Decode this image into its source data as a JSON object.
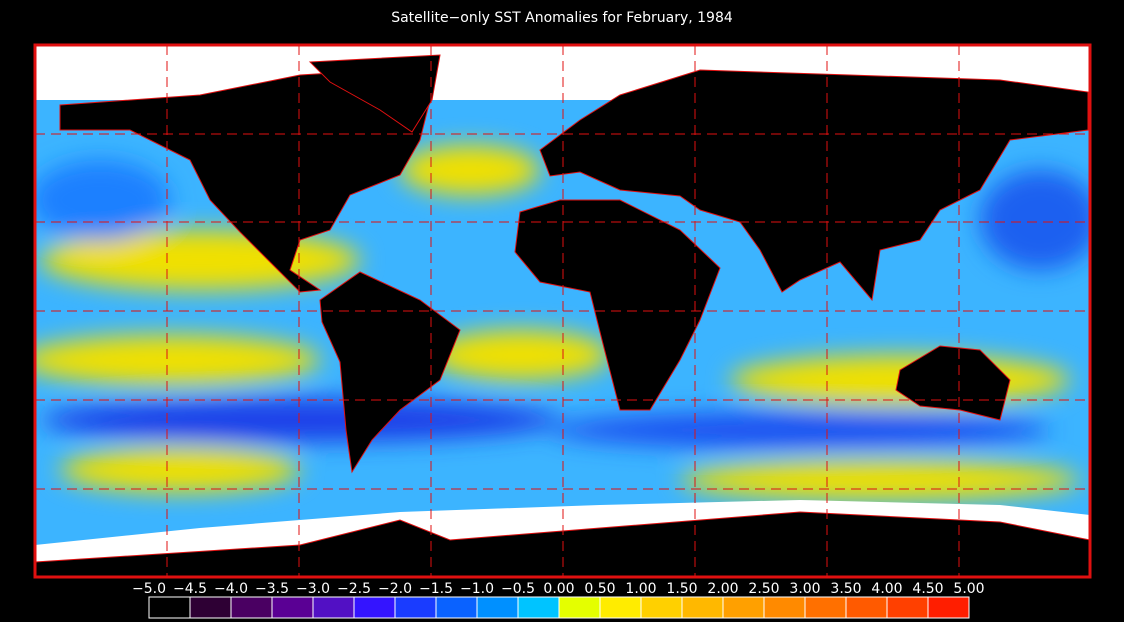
{
  "title": "Satellite−only SST Anomalies for February, 1984",
  "colorbar": {
    "labels": [
      "−5.0",
      "−4.5",
      "−4.0",
      "−3.5",
      "−3.0",
      "−2.5",
      "−2.0",
      "−1.5",
      "−1.0",
      "−0.5",
      "0.00",
      "0.50",
      "1.00",
      "1.50",
      "2.00",
      "2.50",
      "3.00",
      "3.50",
      "4.00",
      "4.50",
      "5.00"
    ],
    "colors": [
      "#000000",
      "#2e0034",
      "#4a0062",
      "#5a0094",
      "#5210c4",
      "#3414ff",
      "#1a3cff",
      "#0a62ff",
      "#0090ff",
      "#00c4ff",
      "#e4ff00",
      "#ffec00",
      "#ffd000",
      "#ffb800",
      "#ffa000",
      "#ff8a00",
      "#ff7000",
      "#ff5a00",
      "#ff4000",
      "#ff1e00"
    ]
  }
}
